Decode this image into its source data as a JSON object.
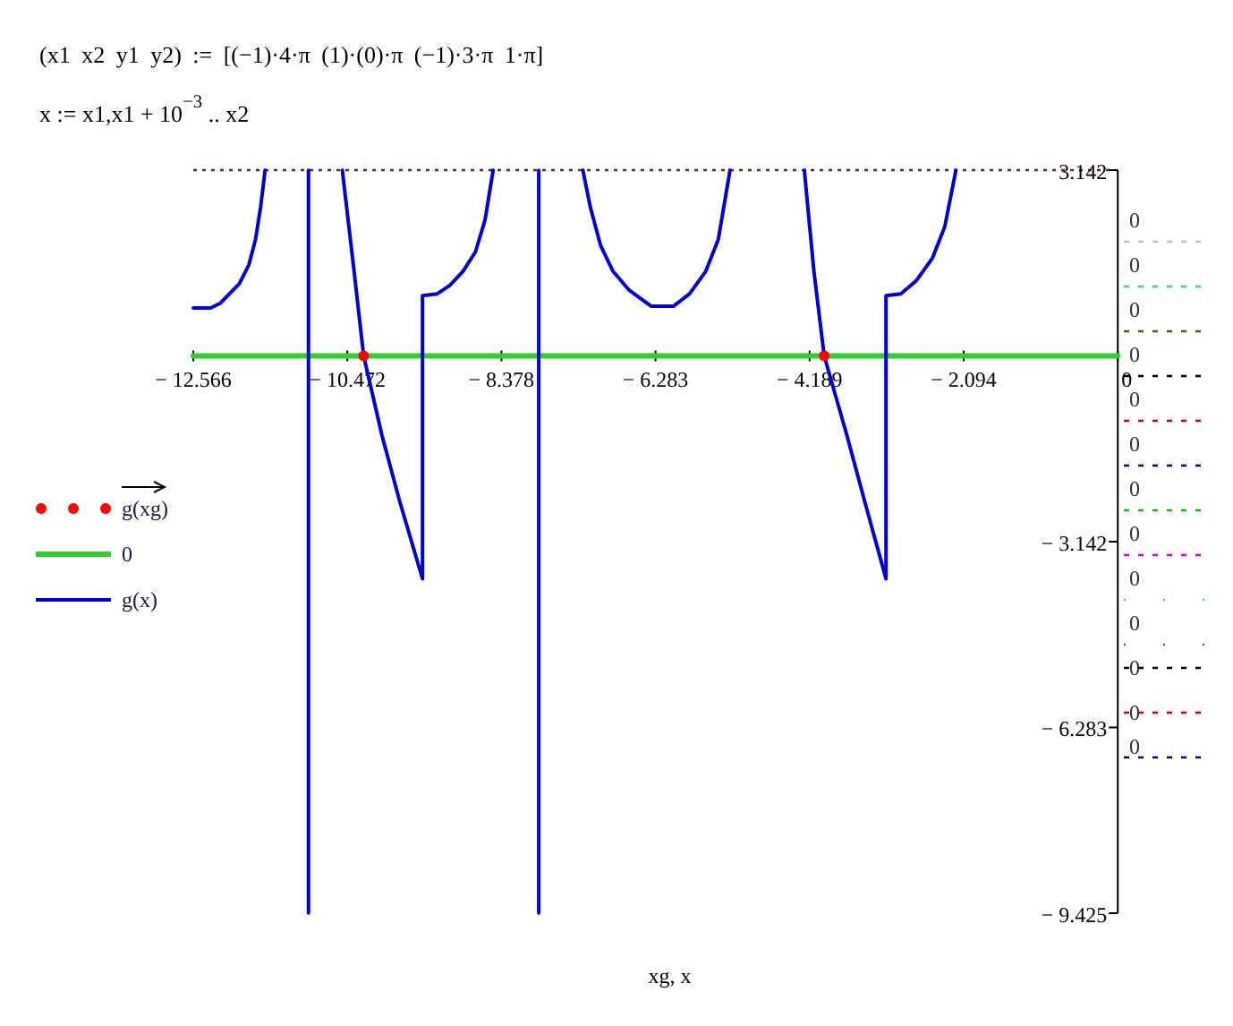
{
  "chart_data": {
    "type": "line",
    "title": "(x1 x2 y1 y2) := [(−1)·4·π (1)·(0)·π (−1)·3·π 1·π]",
    "subtitle": "x := x1,x1 + 10$^{−3}$ .. x2",
    "xlabel": "xg, x",
    "annotations": [
      "0",
      "0",
      "0",
      "0",
      "0",
      "0",
      "0",
      "0",
      "0",
      "0",
      "0",
      "0",
      "0"
    ],
    "xlim": [
      -12.566,
      0
    ],
    "ylim": [
      -9.425,
      3.142
    ],
    "xticks": [
      {
        "value": -12.566,
        "label": "− 12.566"
      },
      {
        "value": -10.472,
        "label": "− 10.472"
      },
      {
        "value": -8.378,
        "label": "− 8.378"
      },
      {
        "value": -6.283,
        "label": "− 6.283"
      },
      {
        "value": -4.189,
        "label": "− 4.189"
      },
      {
        "value": -2.094,
        "label": "− 2.094"
      },
      0
    ],
    "yticks": [
      3.142,
      {
        "value": -3.142,
        "label": "− 3.142"
      },
      {
        "value": -6.283,
        "label": "− 6.283"
      },
      {
        "value": -9.425,
        "label": "− 9.425"
      }
    ],
    "ref_lines": [
      {
        "axis": "y",
        "value": 3.142,
        "line_style": "dotted",
        "color": "#5a2a2a"
      }
    ],
    "legend": "left",
    "series": [
      {
        "name": "g(xg)",
        "type": "scatter",
        "marker": "circle",
        "color": "#ff0000",
        "x": [
          -10.25,
          -3.99
        ],
        "values": [
          0,
          0
        ]
      },
      {
        "name": "0",
        "color": "#33cc33",
        "x": [
          -12.566,
          0
        ],
        "values": [
          0,
          0
        ]
      },
      {
        "name": "g(x)",
        "color": "#0000cc",
        "x": [
          -12.566,
          -12.33,
          -12.2,
          -11.94,
          -11.81,
          -11.72,
          -11.65,
          -11.59,
          -11.3,
          -11.0,
          -11.0,
          -10.8,
          -10.54,
          -10.38,
          -10.25,
          -10.0,
          -9.76,
          -9.45,
          -9.45,
          -9.25,
          -9.08,
          -8.9,
          -8.73,
          -8.6,
          -8.49,
          -8.2,
          -7.87,
          -7.87,
          -7.6,
          -7.27,
          -7.17,
          -7.03,
          -6.86,
          -6.64,
          -6.34,
          -6.04,
          -5.82,
          -5.6,
          -5.43,
          -5.27,
          -4.8,
          -4.26,
          -4.13,
          -3.99,
          -3.68,
          -3.44,
          -3.15,
          -3.15,
          -2.95,
          -2.74,
          -2.52,
          -2.35,
          -2.2
        ],
        "values": [
          0.81,
          0.81,
          0.89,
          1.22,
          1.54,
          1.97,
          2.52,
          3.14,
          null,
          3.14,
          -9.42,
          null,
          3.14,
          1.43,
          0,
          -1.35,
          -2.46,
          -3.77,
          1.02,
          1.05,
          1.19,
          1.43,
          1.76,
          2.3,
          3.14,
          null,
          3.14,
          -9.42,
          null,
          3.14,
          2.52,
          1.87,
          1.43,
          1.11,
          0.84,
          0.84,
          1.05,
          1.43,
          1.97,
          3.14,
          null,
          3.14,
          1.43,
          0,
          -1.35,
          -2.46,
          -3.77,
          1.02,
          1.05,
          1.27,
          1.65,
          2.19,
          3.14
        ]
      }
    ]
  }
}
